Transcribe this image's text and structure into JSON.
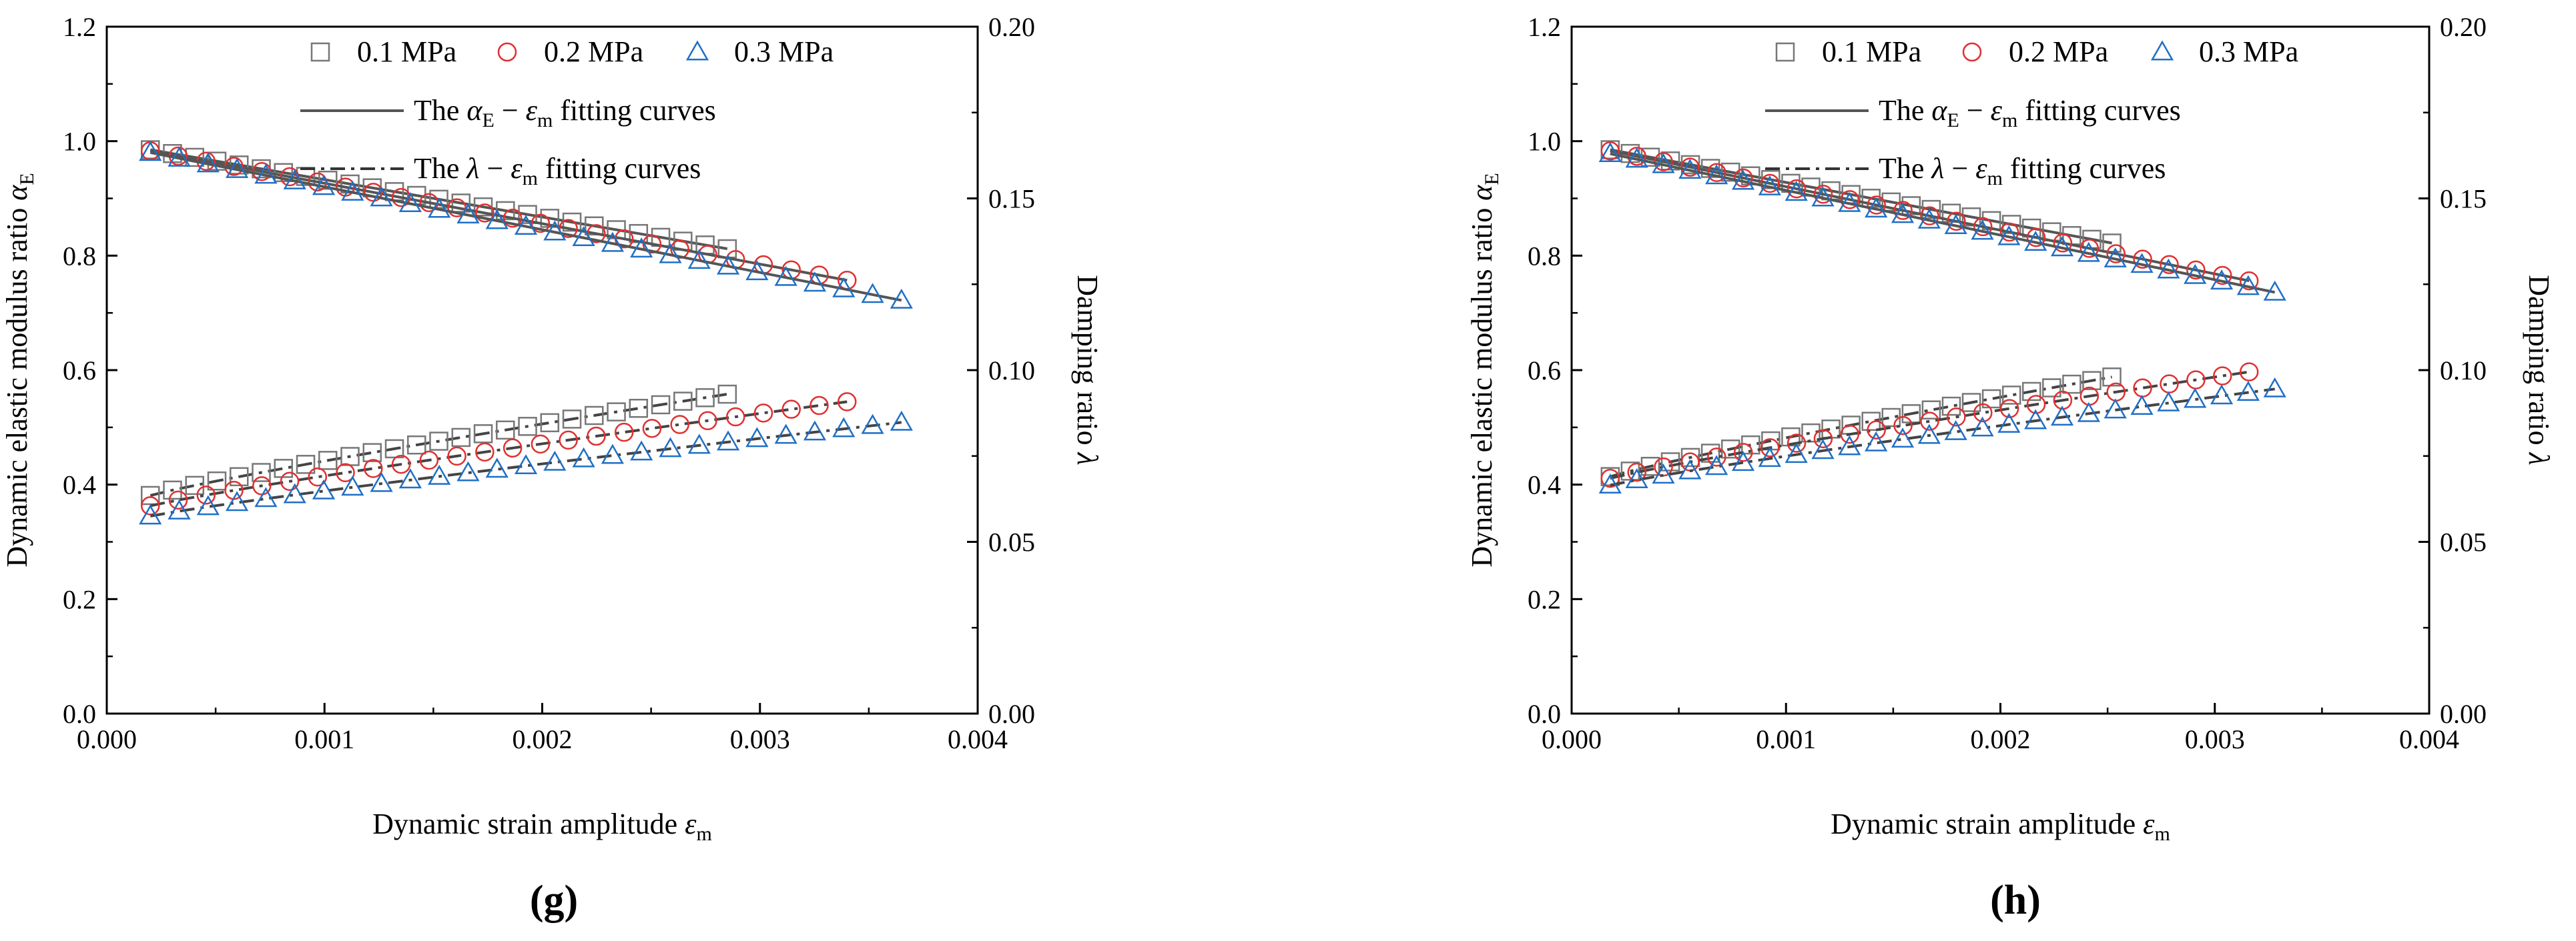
{
  "chart_data": [
    {
      "panel": "g",
      "type": "scatter",
      "xlabel_text": "Dynamic strain amplitude ",
      "xlabel_symbol": "ε",
      "xlabel_sub": "m",
      "ylabel_left_text": "Dynamic elastic modulus ratio ",
      "ylabel_left_symbol": "α",
      "ylabel_left_sub": "E",
      "ylabel_right_text": "Damping ratio ",
      "ylabel_right_symbol": "λ",
      "xlim": [
        0.0,
        0.004
      ],
      "ylim_left": [
        0.0,
        1.2
      ],
      "ylim_right": [
        0.0,
        0.2
      ],
      "xticks": [
        "0.000",
        "0.001",
        "0.002",
        "0.003",
        "0.004"
      ],
      "yticks_left": [
        "0.0",
        "0.2",
        "0.4",
        "0.6",
        "0.8",
        "1.0",
        "1.2"
      ],
      "yticks_right": [
        "0.00",
        "0.05",
        "0.10",
        "0.15",
        "0.20"
      ],
      "legend": {
        "series": [
          "0.1 MPa",
          "0.2 MPa",
          "0.3 MPa"
        ],
        "fit_E_prefix": "The ",
        "fit_E_alpha": "α",
        "fit_E_alpha_sub": "E",
        "fit_E_minus": " − ",
        "fit_E_eps": "ε",
        "fit_E_eps_sub": "m",
        "fit_E_suffix": "  fitting curves",
        "fit_L_prefix": "The ",
        "fit_L_lambda": "λ",
        "fit_L_minus": " − ",
        "fit_L_eps": "ε",
        "fit_L_eps_sub": "m",
        "fit_L_suffix": " fitting curves"
      },
      "series": [
        {
          "name": "0.1 MPa",
          "marker": "square",
          "color": "#777777",
          "x_start": 0.0002,
          "x_end": 0.00285,
          "n": 27,
          "alpha_E": [
            0.985,
            0.812
          ],
          "damping": [
            0.0635,
            0.093
          ]
        },
        {
          "name": "0.2 MPa",
          "marker": "circle",
          "color": "#e03030",
          "x_start": 0.0002,
          "x_end": 0.0034,
          "n": 26,
          "alpha_E": [
            0.983,
            0.757
          ],
          "damping": [
            0.0605,
            0.0908
          ]
        },
        {
          "name": "0.3 MPa",
          "marker": "triangle",
          "color": "#1f6fc5",
          "x_start": 0.0002,
          "x_end": 0.00365,
          "n": 27,
          "alpha_E": [
            0.98,
            0.722
          ],
          "damping": [
            0.0575,
            0.0848
          ]
        }
      ]
    },
    {
      "panel": "h",
      "type": "scatter",
      "xlabel_text": "Dynamic strain amplitude ",
      "xlabel_symbol": "ε",
      "xlabel_sub": "m",
      "ylabel_left_text": "Dynamic elastic modulus ratio ",
      "ylabel_left_symbol": "α",
      "ylabel_left_sub": "E",
      "ylabel_right_text": "Damping ratio ",
      "ylabel_right_symbol": "λ",
      "xlim": [
        0.0,
        0.004
      ],
      "ylim_left": [
        0.0,
        1.2
      ],
      "ylim_right": [
        0.0,
        0.2
      ],
      "xticks": [
        "0.000",
        "0.001",
        "0.002",
        "0.003",
        "0.004"
      ],
      "yticks_left": [
        "0.0",
        "0.2",
        "0.4",
        "0.6",
        "0.8",
        "1.0",
        "1.2"
      ],
      "yticks_right": [
        "0.00",
        "0.05",
        "0.10",
        "0.15",
        "0.20"
      ],
      "legend": {
        "series": [
          "0.1 MPa",
          "0.2 MPa",
          "0.3 MPa"
        ],
        "fit_E_prefix": "The ",
        "fit_E_alpha": "α",
        "fit_E_alpha_sub": "E",
        "fit_E_minus": " − ",
        "fit_E_eps": "ε",
        "fit_E_eps_sub": "m",
        "fit_E_suffix": "  fitting curves",
        "fit_L_prefix": "The ",
        "fit_L_lambda": "λ",
        "fit_L_minus": " − ",
        "fit_L_eps": "ε",
        "fit_L_eps_sub": "m",
        "fit_L_suffix": " fitting curves"
      },
      "series": [
        {
          "name": "0.1 MPa",
          "marker": "square",
          "color": "#777777",
          "x_start": 0.00018,
          "x_end": 0.00252,
          "n": 26,
          "alpha_E": [
            0.985,
            0.822
          ],
          "damping": [
            0.069,
            0.098
          ]
        },
        {
          "name": "0.2 MPa",
          "marker": "circle",
          "color": "#e03030",
          "x_start": 0.00018,
          "x_end": 0.00316,
          "n": 25,
          "alpha_E": [
            0.983,
            0.756
          ],
          "damping": [
            0.0685,
            0.0995
          ]
        },
        {
          "name": "0.3 MPa",
          "marker": "triangle",
          "color": "#1f6fc5",
          "x_start": 0.00018,
          "x_end": 0.00328,
          "n": 26,
          "alpha_E": [
            0.978,
            0.736
          ],
          "damping": [
            0.0665,
            0.0945
          ]
        }
      ]
    }
  ],
  "captions": [
    "(g)",
    "(h)"
  ]
}
